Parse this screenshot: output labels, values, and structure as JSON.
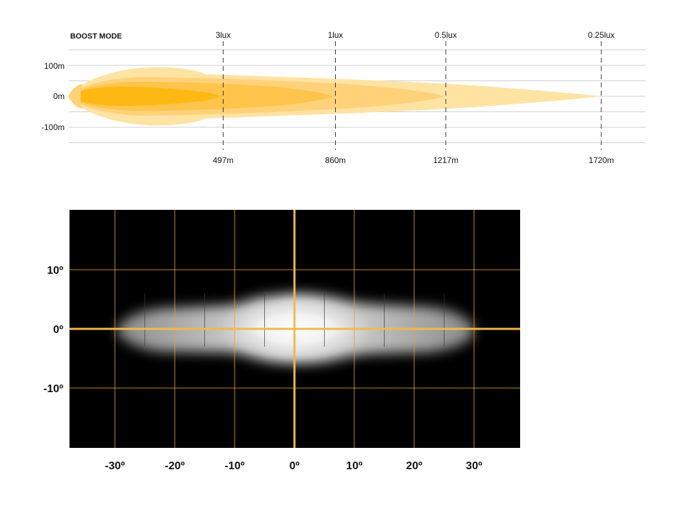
{
  "chart_data": [
    {
      "type": "area",
      "title": "BOOST MODE",
      "y_ticks": [
        "100m",
        "0m",
        "-100m"
      ],
      "ylim": [
        -150,
        150
      ],
      "xlim": [
        0,
        1880
      ],
      "lux_markers": [
        {
          "lux_label": "3lux",
          "distance_label": "497m",
          "distance": 497
        },
        {
          "lux_label": "1lux",
          "distance_label": "860m",
          "distance": 860
        },
        {
          "lux_label": "0.5lux",
          "distance_label": "1217m",
          "distance": 1217
        },
        {
          "lux_label": "0.25lux",
          "distance_label": "1720m",
          "distance": 1720
        }
      ],
      "grid": true,
      "colors": {
        "band_outer": "#FFE3A3",
        "band_2": "#FFD27A",
        "band_3": "#FFC44C",
        "band_inner": "#FDB813",
        "grid": "#cfcfcf",
        "marker": "#333333"
      }
    },
    {
      "type": "heatmap",
      "x_ticks": [
        "-30º",
        "-20º",
        "-10º",
        "0º",
        "10º",
        "20º",
        "30º"
      ],
      "x_values": [
        -30,
        -20,
        -10,
        0,
        10,
        20,
        30
      ],
      "y_ticks": [
        "10º",
        "0º",
        "-10º"
      ],
      "y_values": [
        10,
        0,
        -10
      ],
      "xlim": [
        -38,
        38
      ],
      "ylim": [
        -20,
        20
      ],
      "grid": true,
      "colors": {
        "background": "#000000",
        "grid": "#E0A528",
        "axis": "#F2B84B",
        "beam": "#ffffff"
      }
    }
  ]
}
